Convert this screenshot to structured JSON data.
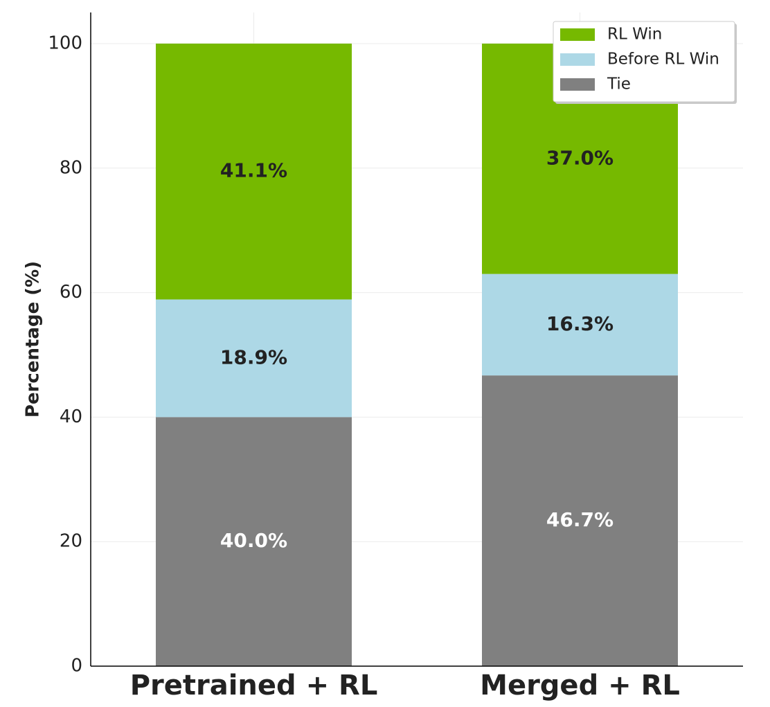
{
  "chart_data": {
    "type": "bar",
    "stacked": true,
    "categories": [
      "Pretrained + RL",
      "Merged + RL"
    ],
    "series": [
      {
        "name": "Tie",
        "values": [
          40.0,
          46.7
        ],
        "labels": [
          "40.0%",
          "46.7%"
        ],
        "color": "#808080",
        "label_color": "#ffffff"
      },
      {
        "name": "Before RL Win",
        "values": [
          18.9,
          16.3
        ],
        "labels": [
          "18.9%",
          "16.3%"
        ],
        "color": "#add8e6",
        "label_color": "#222222"
      },
      {
        "name": "RL Win",
        "values": [
          41.1,
          37.0
        ],
        "labels": [
          "41.1%",
          "37.0%"
        ],
        "color": "#76b900",
        "label_color": "#222222"
      }
    ],
    "legend_order": [
      "RL Win",
      "Before RL Win",
      "Tie"
    ],
    "legend_position": "top-right",
    "ylabel": "Percentage (%)",
    "xlabel": "",
    "ylim": [
      0,
      105
    ],
    "yticks": [
      0,
      20,
      40,
      60,
      80,
      100
    ],
    "grid": true
  }
}
